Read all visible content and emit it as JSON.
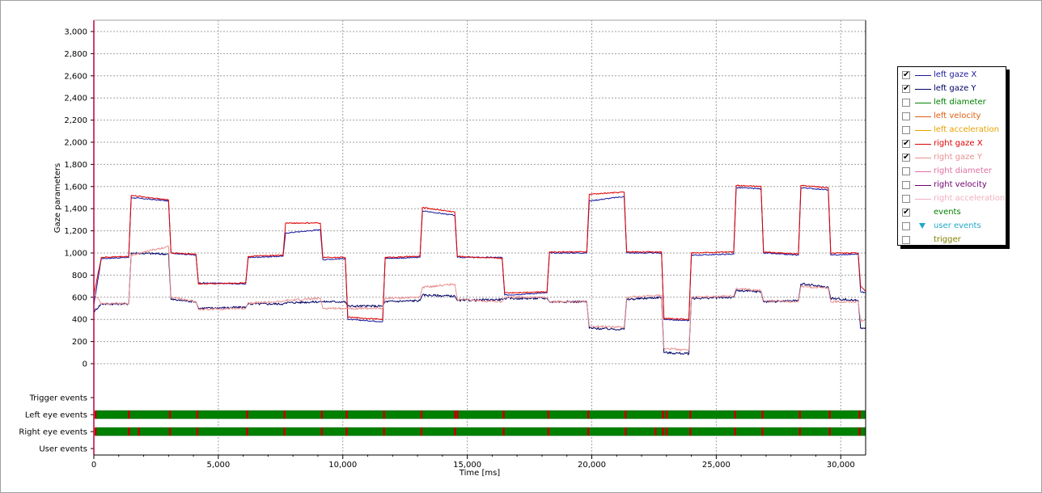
{
  "chart_data": {
    "type": "line",
    "xlabel": "Time [ms]",
    "ylabel": "Gaze parameters",
    "xlim": [
      0,
      31000
    ],
    "ylim": [
      -250,
      3100
    ],
    "x_ticks": [
      0,
      5000,
      10000,
      15000,
      20000,
      25000,
      30000
    ],
    "x_tick_labels": [
      "0",
      "5,000",
      "10,000",
      "15,000",
      "20,000",
      "25,000",
      "30,000"
    ],
    "y_ticks": [
      0,
      200,
      400,
      600,
      800,
      1000,
      1200,
      1400,
      1600,
      1800,
      2000,
      2200,
      2400,
      2600,
      2800,
      3000
    ],
    "y_tick_labels": [
      "0",
      "200",
      "400",
      "600",
      "800",
      "1,000",
      "1,200",
      "1,400",
      "1,600",
      "1,800",
      "2,000",
      "2,200",
      "2,400",
      "2,600",
      "2,800",
      "3,000"
    ],
    "grid": true,
    "legend_placement": "right",
    "series": [
      {
        "name": "left gaze X",
        "color": "#1a1aa0",
        "x": [
          0,
          300,
          1400,
          1500,
          3000,
          3100,
          4100,
          4200,
          6100,
          6200,
          7600,
          7700,
          9100,
          9200,
          10100,
          10200,
          11600,
          11700,
          13100,
          13200,
          14500,
          14600,
          16400,
          16500,
          18200,
          18300,
          19800,
          19900,
          21300,
          21400,
          22800,
          22900,
          23900,
          24000,
          25700,
          25800,
          26800,
          26900,
          28300,
          28400,
          29500,
          29600,
          30700,
          30800,
          31000
        ],
        "y": [
          530,
          950,
          960,
          1500,
          1470,
          1000,
          980,
          730,
          720,
          960,
          970,
          1180,
          1210,
          940,
          950,
          400,
          380,
          950,
          960,
          1380,
          1340,
          960,
          960,
          620,
          640,
          1000,
          1000,
          1470,
          1510,
          1000,
          1000,
          400,
          390,
          980,
          990,
          1590,
          1580,
          1000,
          980,
          1590,
          1570,
          980,
          990,
          650,
          640
        ]
      },
      {
        "name": "left gaze Y",
        "color": "#000066",
        "x": [
          0,
          300,
          1400,
          1500,
          3000,
          3100,
          4100,
          4200,
          6100,
          6200,
          7600,
          7700,
          9100,
          9200,
          10100,
          10200,
          11600,
          11700,
          13100,
          13200,
          14500,
          14600,
          16400,
          16500,
          18200,
          18300,
          19800,
          19900,
          21300,
          21400,
          22800,
          22900,
          23900,
          24000,
          25700,
          25800,
          26800,
          26900,
          28300,
          28400,
          29500,
          29600,
          30700,
          30800,
          31000
        ],
        "y": [
          470,
          540,
          540,
          1000,
          990,
          580,
          560,
          500,
          510,
          540,
          540,
          550,
          560,
          560,
          560,
          520,
          520,
          560,
          570,
          620,
          610,
          570,
          580,
          590,
          590,
          560,
          560,
          320,
          310,
          580,
          600,
          100,
          90,
          590,
          600,
          660,
          650,
          560,
          570,
          720,
          690,
          590,
          570,
          320,
          330
        ]
      },
      {
        "name": "left diameter",
        "color": "#008000",
        "x": [],
        "y": []
      },
      {
        "name": "left velocity",
        "color": "#e06010",
        "x": [],
        "y": []
      },
      {
        "name": "left acceleration",
        "color": "#e8a000",
        "x": [],
        "y": []
      },
      {
        "name": "right gaze X",
        "color": "#e00000",
        "x": [
          0,
          300,
          1400,
          1500,
          3000,
          3100,
          4100,
          4200,
          6100,
          6200,
          7600,
          7700,
          9100,
          9200,
          10100,
          10200,
          11600,
          11700,
          13100,
          13200,
          14500,
          14600,
          16400,
          16500,
          18200,
          18300,
          19800,
          19900,
          21300,
          21400,
          22800,
          22900,
          23900,
          24000,
          25700,
          25800,
          26800,
          26900,
          28300,
          28400,
          29500,
          29600,
          30700,
          30800,
          31000
        ],
        "y": [
          620,
          960,
          970,
          1520,
          1480,
          1000,
          990,
          720,
          730,
          970,
          980,
          1270,
          1270,
          960,
          960,
          420,
          400,
          960,
          970,
          1410,
          1370,
          970,
          950,
          640,
          650,
          1010,
          1010,
          1530,
          1550,
          1010,
          1010,
          410,
          400,
          1000,
          1010,
          1610,
          1600,
          1010,
          990,
          1610,
          1590,
          1000,
          1000,
          700,
          660
        ]
      },
      {
        "name": "right gaze Y",
        "color": "#e89090",
        "x": [
          0,
          300,
          1400,
          1500,
          3000,
          3100,
          4100,
          4200,
          6100,
          6200,
          7600,
          7700,
          9100,
          9200,
          10100,
          10200,
          11600,
          11700,
          13100,
          13200,
          14500,
          14600,
          16400,
          16500,
          18200,
          18300,
          19800,
          19900,
          21300,
          21400,
          22800,
          22900,
          23900,
          24000,
          25700,
          25800,
          26800,
          26900,
          28300,
          28400,
          29500,
          29600,
          30700,
          30800,
          31000
        ],
        "y": [
          640,
          540,
          540,
          980,
          1060,
          600,
          560,
          490,
          500,
          550,
          560,
          570,
          590,
          500,
          500,
          500,
          500,
          590,
          600,
          690,
          720,
          580,
          560,
          600,
          600,
          560,
          560,
          340,
          330,
          600,
          620,
          140,
          120,
          600,
          610,
          680,
          660,
          570,
          560,
          700,
          680,
          560,
          560,
          380,
          400
        ]
      },
      {
        "name": "right diameter",
        "color": "#e070a0",
        "x": [],
        "y": []
      },
      {
        "name": "right velocity",
        "color": "#700070",
        "x": [],
        "y": []
      },
      {
        "name": "right acceleration",
        "color": "#f0b0c0",
        "x": [],
        "y": []
      }
    ],
    "event_tracks": {
      "labels": [
        "Trigger events",
        "Left eye events",
        "Right eye events",
        "User events"
      ],
      "left_eye_marks": [
        60,
        1400,
        3050,
        4150,
        6150,
        7650,
        9150,
        10150,
        11650,
        13150,
        14500,
        14600,
        16450,
        18250,
        19850,
        21350,
        22850,
        23000,
        23950,
        25750,
        26850,
        28350,
        29550,
        30750
      ],
      "right_eye_marks": [
        60,
        1400,
        1800,
        3050,
        4150,
        6150,
        7650,
        9150,
        10150,
        11650,
        13150,
        14500,
        16450,
        18250,
        19850,
        21350,
        22550,
        22850,
        23000,
        23950,
        25750,
        26850,
        28350,
        29550,
        30750
      ]
    }
  },
  "legend": {
    "items": [
      {
        "label": "left gaze X",
        "checked": true,
        "color": "#1a1aa0",
        "text_color": "#1a1aa0",
        "marker": "line"
      },
      {
        "label": "left gaze Y",
        "checked": true,
        "color": "#000066",
        "text_color": "#000066",
        "marker": "line"
      },
      {
        "label": "left diameter",
        "checked": false,
        "color": "#008000",
        "text_color": "#008000",
        "marker": "line"
      },
      {
        "label": "left velocity",
        "checked": false,
        "color": "#e06010",
        "text_color": "#e06010",
        "marker": "line"
      },
      {
        "label": "left acceleration",
        "checked": false,
        "color": "#e8a000",
        "text_color": "#e8a000",
        "marker": "line"
      },
      {
        "label": "right gaze X",
        "checked": true,
        "color": "#e00000",
        "text_color": "#e00000",
        "marker": "line"
      },
      {
        "label": "right gaze Y",
        "checked": true,
        "color": "#e89090",
        "text_color": "#e89090",
        "marker": "line"
      },
      {
        "label": "right diameter",
        "checked": false,
        "color": "#e070a0",
        "text_color": "#e070a0",
        "marker": "line"
      },
      {
        "label": "right velocity",
        "checked": false,
        "color": "#700070",
        "text_color": "#700070",
        "marker": "line"
      },
      {
        "label": "right acceleration",
        "checked": false,
        "color": "#f0b0c0",
        "text_color": "#f0b0c0",
        "marker": "line"
      },
      {
        "label": "events",
        "checked": true,
        "color": "#008000",
        "text_color": "#008000",
        "marker": "none"
      },
      {
        "label": "user events",
        "checked": false,
        "color": "#1fa8c9",
        "text_color": "#1fa8c9",
        "marker": "triangle"
      },
      {
        "label": "trigger",
        "checked": false,
        "color": "#808000",
        "text_color": "#808000",
        "marker": "none"
      }
    ]
  },
  "colors": {
    "axis": "#c00040",
    "grid": "#a0a0a0",
    "event_bar": "#008000",
    "event_mark": "#c00000"
  }
}
